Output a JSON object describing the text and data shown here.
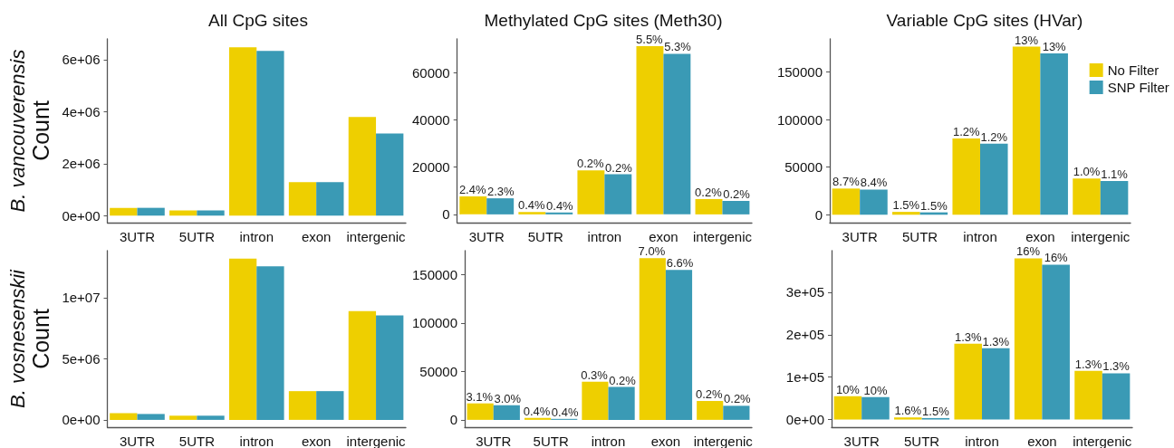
{
  "chart_data": [
    {
      "type": "bar",
      "title": "All CpG sites",
      "ylabel": "B. vancouverensis\nCount",
      "categories": [
        "3UTR",
        "5UTR",
        "intron",
        "exon",
        "intergenic"
      ],
      "ylim": [
        -270000,
        6800000
      ],
      "yticks": [
        {
          "value": 0,
          "label": "0e+00"
        },
        {
          "value": 2000000,
          "label": "2e+06"
        },
        {
          "value": 4000000,
          "label": "4e+06"
        },
        {
          "value": 6000000,
          "label": "6e+06"
        }
      ],
      "series": [
        {
          "color": "#eecf00",
          "values": [
            300000,
            200000,
            6480000,
            1290000,
            3800000
          ]
        },
        {
          "color": "#3a9ab5",
          "values": [
            300000,
            200000,
            6340000,
            1290000,
            3160000
          ]
        }
      ]
    },
    {
      "type": "bar",
      "title": "Methylated CpG sites (Meth30)",
      "categories": [
        "3UTR",
        "5UTR",
        "intron",
        "exon",
        "intergenic"
      ],
      "ylim": [
        -3500,
        74300
      ],
      "yticks": [
        0,
        20000,
        40000,
        60000
      ],
      "series": [
        {
          "color": "#eecf00",
          "values": [
            7600,
            1000,
            18600,
            71200,
            6500
          ]
        },
        {
          "color": "#3a9ab5",
          "values": [
            6800,
            800,
            17000,
            68000,
            5700
          ]
        }
      ],
      "annotations": [
        {
          "text": "2.4%",
          "x": "3UTR",
          "y": 7600
        },
        {
          "text": "0.4%",
          "x": "5UTR",
          "y": 1000
        },
        {
          "text": "0.2%",
          "x": "intron",
          "y": 18600
        },
        {
          "text": "5.5%",
          "x": "exon",
          "y": 71200
        },
        {
          "text": "0.2%",
          "x": "intergenic",
          "y": 6500
        },
        {
          "text": "2.3%",
          "x": "3UTR",
          "y": 6800
        },
        {
          "text": "0.4%",
          "x": "5UTR",
          "y": 800
        },
        {
          "text": "0.2%",
          "x": "intron",
          "y": 17000
        },
        {
          "text": "5.3%",
          "x": "exon",
          "y": 68000
        },
        {
          "text": "0.2%",
          "x": "intergenic",
          "y": 5700
        }
      ]
    },
    {
      "type": "bar",
      "title": "Variable CpG sites (HVar)",
      "categories": [
        "3UTR",
        "5UTR",
        "intron",
        "exon",
        "intergenic"
      ],
      "ylim": [
        -8300,
        184600
      ],
      "yticks": [
        0,
        50000,
        100000,
        150000
      ],
      "legend": "right",
      "series": [
        {
          "name": "No Filter",
          "color": "#eecf00",
          "values": [
            27500,
            3000,
            80000,
            176500,
            38000
          ]
        },
        {
          "name": "SNP Filter",
          "color": "#3a9ab5",
          "values": [
            26500,
            2500,
            74500,
            169500,
            35500
          ]
        }
      ],
      "annotations": [
        {
          "text": "8.7%",
          "x": "3UTR",
          "y": 27500
        },
        {
          "text": "1.5%",
          "x": "5UTR",
          "y": 3000
        },
        {
          "text": "1.2%",
          "x": "intron",
          "y": 80000
        },
        {
          "text": "13%",
          "x": "exon",
          "y": 176500
        },
        {
          "text": "1.0%",
          "x": "intergenic",
          "y": 38000
        },
        {
          "text": "8.4%",
          "x": "3UTR",
          "y": 26500
        },
        {
          "text": "1.5%",
          "x": "5UTR",
          "y": 2500
        },
        {
          "text": "1.2%",
          "x": "intron",
          "y": 74500
        },
        {
          "text": "13%",
          "x": "exon",
          "y": 169500
        },
        {
          "text": "1.1%",
          "x": "intergenic",
          "y": 35500
        }
      ]
    },
    {
      "type": "bar",
      "ylabel": "B. vosnesenskii\nCount",
      "categories": [
        "3UTR",
        "5UTR",
        "intron",
        "exon",
        "intergenic"
      ],
      "ylim": [
        -600000,
        13840000
      ],
      "yticks": [
        {
          "value": 0,
          "label": "0e+00"
        },
        {
          "value": 5000000,
          "label": "5e+06"
        },
        {
          "value": 10000000,
          "label": "1e+07"
        }
      ],
      "series": [
        {
          "color": "#eecf00",
          "values": [
            550000,
            340000,
            13200000,
            2350000,
            8900000
          ]
        },
        {
          "color": "#3a9ab5",
          "values": [
            480000,
            340000,
            12570000,
            2350000,
            8540000
          ]
        }
      ]
    },
    {
      "type": "bar",
      "categories": [
        "3UTR",
        "5UTR",
        "intron",
        "exon",
        "intergenic"
      ],
      "ylim": [
        -7600,
        174800
      ],
      "yticks": [
        0,
        50000,
        100000,
        150000
      ],
      "series": [
        {
          "color": "#eecf00",
          "values": [
            17000,
            2000,
            39500,
            167000,
            19500
          ]
        },
        {
          "color": "#3a9ab5",
          "values": [
            15000,
            1000,
            34000,
            155000,
            14500
          ]
        }
      ],
      "annotations": [
        {
          "text": "3.1%",
          "x": "3UTR",
          "y": 17000
        },
        {
          "text": "0.4%",
          "x": "5UTR",
          "y": 2000
        },
        {
          "text": "0.3%",
          "x": "intron",
          "y": 39500
        },
        {
          "text": "7.0%",
          "x": "exon",
          "y": 167000
        },
        {
          "text": "0.2%",
          "x": "intergenic",
          "y": 19500
        },
        {
          "text": "3.0%",
          "x": "3UTR",
          "y": 15000
        },
        {
          "text": "0.4%",
          "x": "5UTR",
          "y": 1000
        },
        {
          "text": "0.2%",
          "x": "intron",
          "y": 34000
        },
        {
          "text": "6.6%",
          "x": "exon",
          "y": 155000
        },
        {
          "text": "0.2%",
          "x": "intergenic",
          "y": 14500
        }
      ]
    },
    {
      "type": "bar",
      "categories": [
        "3UTR",
        "5UTR",
        "intron",
        "exon",
        "intergenic"
      ],
      "ylim": [
        -18000,
        398000
      ],
      "yticks": [
        {
          "value": 0,
          "label": "0e+00"
        },
        {
          "value": 100000,
          "label": "1e+05"
        },
        {
          "value": 200000,
          "label": "2e+05"
        },
        {
          "value": 300000,
          "label": "3e+05"
        }
      ],
      "series": [
        {
          "color": "#eecf00",
          "values": [
            55000,
            5000,
            179000,
            380000,
            115000
          ]
        },
        {
          "color": "#3a9ab5",
          "values": [
            53000,
            3500,
            168000,
            365000,
            109000
          ]
        }
      ],
      "annotations": [
        {
          "text": "10%",
          "x": "3UTR",
          "y": 55000
        },
        {
          "text": "1.6%",
          "x": "5UTR",
          "y": 5000
        },
        {
          "text": "1.3%",
          "x": "intron",
          "y": 179000
        },
        {
          "text": "16%",
          "x": "exon",
          "y": 380000
        },
        {
          "text": "1.3%",
          "x": "intergenic",
          "y": 115000
        },
        {
          "text": "10%",
          "x": "3UTR",
          "y": 53000
        },
        {
          "text": "1.5%",
          "x": "5UTR",
          "y": 3500
        },
        {
          "text": "1.3%",
          "x": "intron",
          "y": 168000
        },
        {
          "text": "16%",
          "x": "exon",
          "y": 365000
        },
        {
          "text": "1.3%",
          "x": "intergenic",
          "y": 109000
        }
      ]
    }
  ]
}
